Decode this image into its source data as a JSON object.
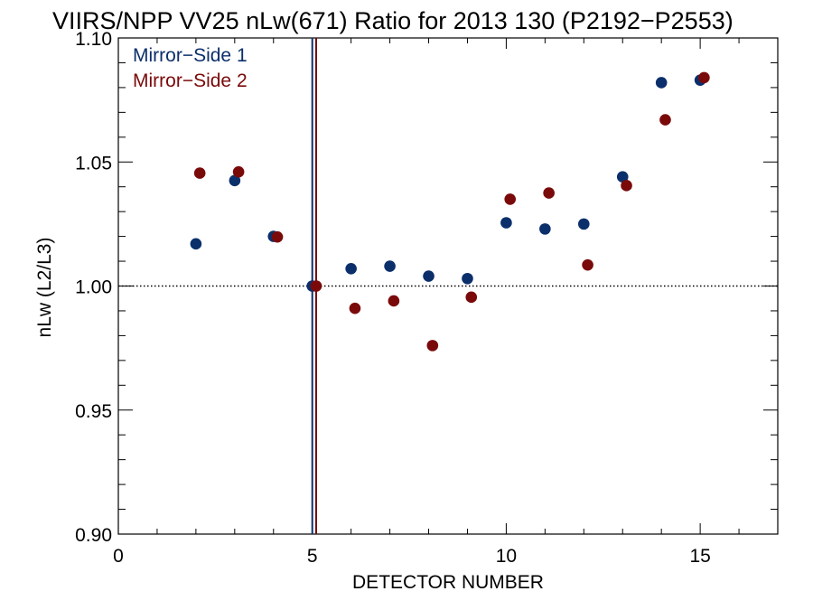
{
  "chart_data": {
    "type": "scatter",
    "title": "VIIRS/NPP VV25 nLw(671) Ratio for 2013 130 (P2192−P2553)",
    "xlabel": "DETECTOR NUMBER",
    "ylabel": "nLw (L2/L3)",
    "xlim": [
      0,
      17
    ],
    "ylim": [
      0.9,
      1.1
    ],
    "xticks": [
      0,
      5,
      10,
      15
    ],
    "yticks": [
      0.9,
      0.95,
      1.0,
      1.05,
      1.1
    ],
    "xtick_labels": [
      "0",
      "5",
      "10",
      "15"
    ],
    "ytick_labels": [
      "0.90",
      "0.95",
      "1.00",
      "1.05",
      "1.10"
    ],
    "x_minor_step": 1,
    "y_minor_step": 0.01,
    "reference_line_y": 1.0,
    "reference_vlines": [
      {
        "x": 5.0,
        "color": "#0b2f6b"
      },
      {
        "x": 5.1,
        "color": "#7a0a0a"
      }
    ],
    "legend_position": "top-left",
    "grid": false,
    "series": [
      {
        "name": "Mirror−Side 1",
        "color": "#0b2f6b",
        "x": [
          2,
          3,
          4,
          5,
          6,
          7,
          8,
          9,
          10,
          11,
          12,
          13,
          14,
          15
        ],
        "y": [
          1.017,
          1.0425,
          1.02,
          1.0,
          1.007,
          1.008,
          1.004,
          1.003,
          1.0255,
          1.023,
          1.025,
          1.044,
          1.082,
          1.083
        ]
      },
      {
        "name": "Mirror−Side 2",
        "color": "#7a0a0a",
        "x": [
          2.1,
          3.1,
          4.1,
          5.1,
          6.1,
          7.1,
          8.1,
          9.1,
          10.1,
          11.1,
          12.1,
          13.1,
          14.1,
          15.1
        ],
        "y": [
          1.0455,
          1.046,
          1.0198,
          1.0,
          0.991,
          0.994,
          0.976,
          0.9955,
          1.035,
          1.0375,
          1.0085,
          1.0405,
          1.067,
          1.084
        ]
      }
    ]
  }
}
